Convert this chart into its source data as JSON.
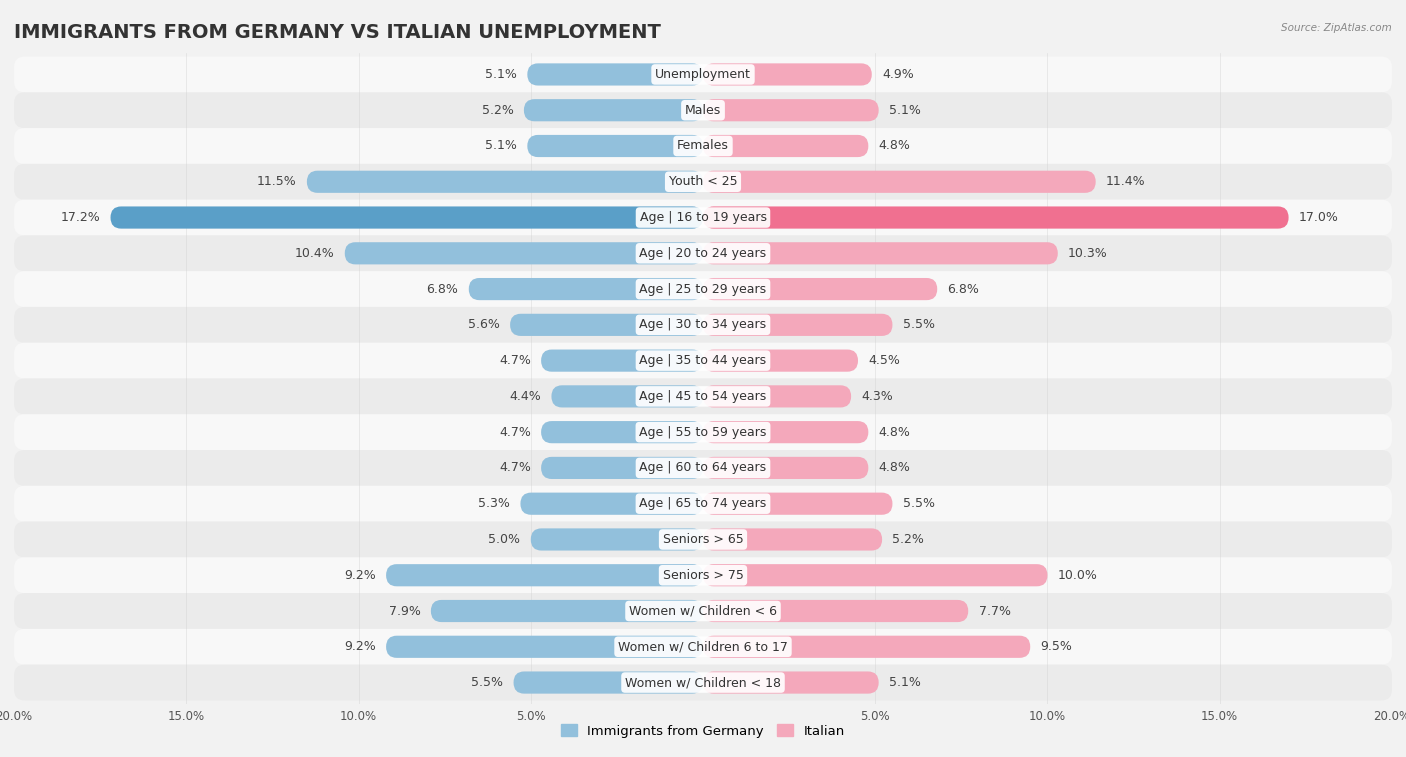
{
  "title": "IMMIGRANTS FROM GERMANY VS ITALIAN UNEMPLOYMENT",
  "source": "Source: ZipAtlas.com",
  "categories": [
    "Unemployment",
    "Males",
    "Females",
    "Youth < 25",
    "Age | 16 to 19 years",
    "Age | 20 to 24 years",
    "Age | 25 to 29 years",
    "Age | 30 to 34 years",
    "Age | 35 to 44 years",
    "Age | 45 to 54 years",
    "Age | 55 to 59 years",
    "Age | 60 to 64 years",
    "Age | 65 to 74 years",
    "Seniors > 65",
    "Seniors > 75",
    "Women w/ Children < 6",
    "Women w/ Children 6 to 17",
    "Women w/ Children < 18"
  ],
  "germany_values": [
    5.1,
    5.2,
    5.1,
    11.5,
    17.2,
    10.4,
    6.8,
    5.6,
    4.7,
    4.4,
    4.7,
    4.7,
    5.3,
    5.0,
    9.2,
    7.9,
    9.2,
    5.5
  ],
  "italian_values": [
    4.9,
    5.1,
    4.8,
    11.4,
    17.0,
    10.3,
    6.8,
    5.5,
    4.5,
    4.3,
    4.8,
    4.8,
    5.5,
    5.2,
    10.0,
    7.7,
    9.5,
    5.1
  ],
  "germany_color": "#92c0dc",
  "italian_color": "#f4a8bb",
  "germany_highlight_color": "#5a9fc8",
  "italian_highlight_color": "#f07090",
  "highlight_row": 4,
  "bar_height": 0.62,
  "max_val": 20.0,
  "background_color": "#f2f2f2",
  "row_bg_colors": [
    "#f8f8f8",
    "#ebebeb"
  ],
  "title_fontsize": 14,
  "label_fontsize": 9,
  "value_fontsize": 9
}
